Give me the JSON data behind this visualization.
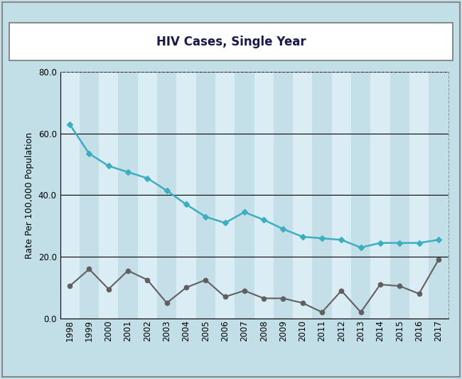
{
  "title": "HIV Cases, Single Year",
  "ylabel": "Rate Per 100,000 Population",
  "years": [
    1998,
    1999,
    2000,
    2001,
    2002,
    2003,
    2004,
    2005,
    2006,
    2007,
    2008,
    2009,
    2010,
    2011,
    2012,
    2013,
    2014,
    2015,
    2016,
    2017
  ],
  "florida": [
    63.0,
    53.5,
    49.5,
    47.5,
    45.5,
    41.5,
    37.0,
    33.0,
    31.0,
    34.5,
    32.0,
    29.0,
    26.5,
    26.0,
    25.5,
    23.0,
    24.5,
    24.5,
    24.5,
    25.5
  ],
  "flagler": [
    10.5,
    16.0,
    9.5,
    15.5,
    12.5,
    5.0,
    10.0,
    12.5,
    7.0,
    9.0,
    6.5,
    6.5,
    5.0,
    2.0,
    9.0,
    2.0,
    11.0,
    10.5,
    8.0,
    19.0
  ],
  "florida_color": "#3BAFC0",
  "flagler_color": "#606060",
  "background_outer": "#C2DFE8",
  "background_plot_light": "#DAEDF5",
  "background_stripe_dark": "#C5DFE9",
  "ylim": [
    0,
    80
  ],
  "yticks": [
    0.0,
    20.0,
    40.0,
    60.0,
    80.0
  ],
  "title_fontsize": 12,
  "label_fontsize": 9,
  "tick_fontsize": 8.5,
  "legend_fontsize": 9.5
}
